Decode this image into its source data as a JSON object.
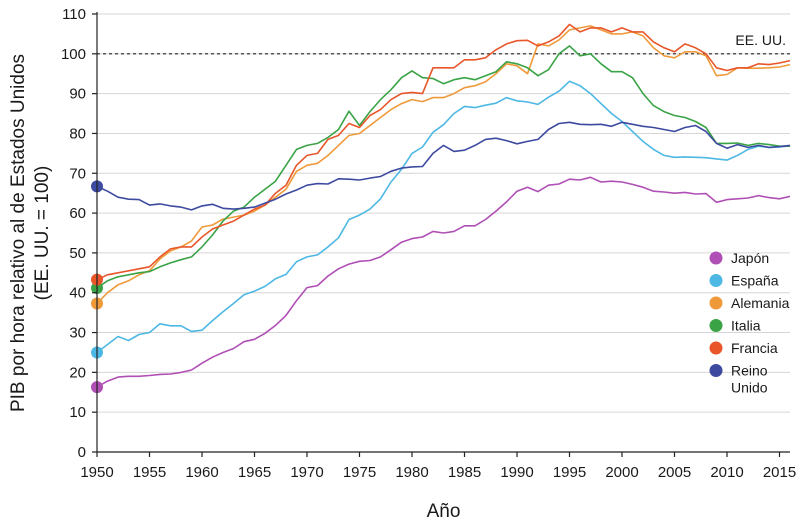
{
  "chart_data": {
    "type": "line",
    "xlabel": "Año",
    "ylabel": [
      "PIB por hora relativo al de Estados Unidos",
      "(EE. UU. = 100)"
    ],
    "xlim": [
      1950,
      2016
    ],
    "ylim": [
      0,
      110
    ],
    "xticks": [
      1950,
      1955,
      1960,
      1965,
      1970,
      1975,
      1980,
      1985,
      1990,
      1995,
      2000,
      2005,
      2010,
      2015
    ],
    "yticks": [
      0,
      10,
      20,
      30,
      40,
      50,
      60,
      70,
      80,
      90,
      100,
      110
    ],
    "grid": "horizontal",
    "legend_position": "right",
    "reference_line": {
      "y": 100,
      "label": "EE. UU.",
      "style": "dashed"
    },
    "series": [
      {
        "name": "Japón",
        "color": "#b04fb5",
        "x": [
          1950,
          1951,
          1952,
          1953,
          1954,
          1955,
          1956,
          1957,
          1958,
          1959,
          1960,
          1961,
          1962,
          1963,
          1964,
          1965,
          1966,
          1967,
          1968,
          1969,
          1970,
          1971,
          1972,
          1973,
          1974,
          1975,
          1976,
          1977,
          1978,
          1979,
          1980,
          1981,
          1982,
          1983,
          1984,
          1985,
          1986,
          1987,
          1988,
          1989,
          1990,
          1991,
          1992,
          1993,
          1994,
          1995,
          1996,
          1997,
          1998,
          1999,
          2000,
          2001,
          2002,
          2003,
          2004,
          2005,
          2006,
          2007,
          2008,
          2009,
          2010,
          2011,
          2012,
          2013,
          2014,
          2015,
          2016
        ],
        "y": [
          16.3,
          17.8,
          18.8,
          19,
          19,
          19.2,
          19.5,
          19.6,
          20,
          20.6,
          22.3,
          23.8,
          25,
          26,
          27.7,
          28.3,
          29.8,
          31.8,
          34.3,
          38,
          41.3,
          41.8,
          44.2,
          46,
          47.2,
          47.9,
          48.1,
          49,
          50.8,
          52.7,
          53.6,
          54,
          55.4,
          55,
          55.4,
          56.8,
          56.8,
          58.4,
          60.5,
          62.8,
          65.5,
          66.5,
          65.4,
          67,
          67.3,
          68.5,
          68.3,
          69,
          67.8,
          68,
          67.8,
          67.2,
          66.5,
          65.5,
          65.3,
          65,
          65.2,
          64.8,
          64.9,
          62.7,
          63.4,
          63.6,
          63.8,
          64.4,
          63.9,
          63.6,
          64.2
        ]
      },
      {
        "name": "España",
        "color": "#4db8e4",
        "x": [
          1950,
          1951,
          1952,
          1953,
          1954,
          1955,
          1956,
          1957,
          1958,
          1959,
          1960,
          1961,
          1962,
          1963,
          1964,
          1965,
          1966,
          1967,
          1968,
          1969,
          1970,
          1971,
          1972,
          1973,
          1974,
          1975,
          1976,
          1977,
          1978,
          1979,
          1980,
          1981,
          1982,
          1983,
          1984,
          1985,
          1986,
          1987,
          1988,
          1989,
          1990,
          1991,
          1992,
          1993,
          1994,
          1995,
          1996,
          1997,
          1998,
          1999,
          2000,
          2001,
          2002,
          2003,
          2004,
          2005,
          2006,
          2007,
          2008,
          2009,
          2010,
          2011,
          2012,
          2013,
          2014,
          2015,
          2016
        ],
        "y": [
          25,
          27,
          29,
          28,
          29.5,
          30,
          32.2,
          31.7,
          31.7,
          30.3,
          30.6,
          33,
          35.2,
          37.3,
          39.5,
          40.4,
          41.6,
          43.5,
          44.6,
          47.8,
          49,
          49.5,
          51.5,
          53.8,
          58.4,
          59.5,
          61,
          63.6,
          67.8,
          71,
          75,
          76.6,
          80.3,
          82.2,
          85,
          86.8,
          86.5,
          87.1,
          87.6,
          89,
          88.2,
          87.9,
          87.3,
          89.1,
          90.6,
          93.1,
          92,
          90,
          87.5,
          85,
          83,
          80.5,
          78,
          76,
          74.5,
          74,
          74.1,
          74,
          73.9,
          73.6,
          73.3,
          74.5,
          76,
          76.8,
          76.5,
          76.6,
          76.9
        ]
      },
      {
        "name": "Alemania",
        "color": "#ef9a3a",
        "x": [
          1950,
          1951,
          1952,
          1953,
          1954,
          1955,
          1956,
          1957,
          1958,
          1959,
          1960,
          1961,
          1962,
          1963,
          1964,
          1965,
          1966,
          1967,
          1968,
          1969,
          1970,
          1971,
          1972,
          1973,
          1974,
          1975,
          1976,
          1977,
          1978,
          1979,
          1980,
          1981,
          1982,
          1983,
          1984,
          1985,
          1986,
          1987,
          1988,
          1989,
          1990,
          1991,
          1992,
          1993,
          1994,
          1995,
          1996,
          1997,
          1998,
          1999,
          2000,
          2001,
          2002,
          2003,
          2004,
          2005,
          2006,
          2007,
          2008,
          2009,
          2010,
          2011,
          2012,
          2013,
          2014,
          2015,
          2016
        ],
        "y": [
          37.3,
          40,
          42,
          43,
          44.5,
          45.5,
          48.5,
          50.5,
          51.5,
          53,
          56.5,
          57,
          58.5,
          59,
          59.5,
          60.5,
          62,
          64,
          66,
          70.5,
          72,
          72.5,
          74.5,
          77,
          79.5,
          80,
          82,
          84,
          86,
          87.5,
          88.5,
          88,
          89,
          89,
          90,
          91.5,
          92,
          93,
          95,
          97.5,
          97,
          95,
          102.5,
          102,
          103.5,
          106,
          106.5,
          107,
          106,
          105,
          105,
          105.5,
          104.5,
          101.5,
          99.5,
          99,
          100.5,
          100.5,
          99.5,
          94.5,
          94.8,
          96.5,
          96.4,
          96.4,
          96.5,
          96.7,
          97.3
        ]
      },
      {
        "name": "Italia",
        "color": "#3aa346",
        "x": [
          1950,
          1951,
          1952,
          1953,
          1954,
          1955,
          1956,
          1957,
          1958,
          1959,
          1960,
          1961,
          1962,
          1963,
          1964,
          1965,
          1966,
          1967,
          1968,
          1969,
          1970,
          1971,
          1972,
          1973,
          1974,
          1975,
          1976,
          1977,
          1978,
          1979,
          1980,
          1981,
          1982,
          1983,
          1984,
          1985,
          1986,
          1987,
          1988,
          1989,
          1990,
          1991,
          1992,
          1993,
          1994,
          1995,
          1996,
          1997,
          1998,
          1999,
          2000,
          2001,
          2002,
          2003,
          2004,
          2005,
          2006,
          2007,
          2008,
          2009,
          2010,
          2011,
          2012,
          2013,
          2014,
          2015,
          2016
        ],
        "y": [
          41.2,
          43,
          44,
          44.5,
          45,
          45.3,
          46.5,
          47.5,
          48.3,
          49,
          51.5,
          54.5,
          58,
          60.5,
          61.5,
          64,
          66,
          68,
          72,
          76,
          77,
          77.5,
          79,
          81,
          85.6,
          82,
          85.5,
          88.5,
          91,
          94,
          95.7,
          94,
          93.8,
          92.5,
          93.5,
          94,
          93.5,
          94.5,
          95.5,
          98,
          97.5,
          96.5,
          94.5,
          96,
          100,
          102,
          99.5,
          100,
          97.5,
          95.5,
          95.5,
          94,
          90,
          87,
          85.5,
          84.5,
          84,
          83,
          81.5,
          77.5,
          77.5,
          77.6,
          77,
          77.5,
          77.2,
          76.8,
          76.8
        ]
      },
      {
        "name": "Francia",
        "color": "#e8562a",
        "x": [
          1950,
          1951,
          1952,
          1953,
          1954,
          1955,
          1956,
          1957,
          1958,
          1959,
          1960,
          1961,
          1962,
          1963,
          1964,
          1965,
          1966,
          1967,
          1968,
          1969,
          1970,
          1971,
          1972,
          1973,
          1974,
          1975,
          1976,
          1977,
          1978,
          1979,
          1980,
          1981,
          1982,
          1983,
          1984,
          1985,
          1986,
          1987,
          1988,
          1989,
          1990,
          1991,
          1992,
          1993,
          1994,
          1995,
          1996,
          1997,
          1998,
          1999,
          2000,
          2001,
          2002,
          2003,
          2004,
          2005,
          2006,
          2007,
          2008,
          2009,
          2010,
          2011,
          2012,
          2013,
          2014,
          2015,
          2016
        ],
        "y": [
          43.3,
          44.5,
          45,
          45.5,
          46,
          46.5,
          49,
          51,
          51.5,
          51.5,
          54,
          56,
          57,
          58,
          59.5,
          61,
          62,
          65,
          67,
          72,
          74.5,
          75,
          78.5,
          79.5,
          82.5,
          81.5,
          84.5,
          86,
          88.5,
          90,
          90.3,
          90,
          96.5,
          96.5,
          96.5,
          98.5,
          98.5,
          99,
          101,
          102.5,
          103.3,
          103.4,
          102,
          103,
          104.5,
          107.4,
          105.5,
          106.5,
          106.5,
          105.5,
          106.5,
          105.5,
          105.5,
          103,
          101.5,
          100.5,
          102.5,
          101.5,
          100,
          96.5,
          95.8,
          96.5,
          96.5,
          97.5,
          97.3,
          97.7,
          98.3
        ]
      },
      {
        "name": "Reino Unido",
        "color": "#3d4aa0",
        "x": [
          1950,
          1951,
          1952,
          1953,
          1954,
          1955,
          1956,
          1957,
          1958,
          1959,
          1960,
          1961,
          1962,
          1963,
          1964,
          1965,
          1966,
          1967,
          1968,
          1969,
          1970,
          1971,
          1972,
          1973,
          1974,
          1975,
          1976,
          1977,
          1978,
          1979,
          1980,
          1981,
          1982,
          1983,
          1984,
          1985,
          1986,
          1987,
          1988,
          1989,
          1990,
          1991,
          1992,
          1993,
          1994,
          1995,
          1996,
          1997,
          1998,
          1999,
          2000,
          2001,
          2002,
          2003,
          2004,
          2005,
          2006,
          2007,
          2008,
          2009,
          2010,
          2011,
          2012,
          2013,
          2014,
          2015,
          2016
        ],
        "y": [
          66.7,
          65.5,
          64,
          63.5,
          63.4,
          62,
          62.3,
          61.8,
          61.5,
          60.8,
          61.8,
          62.2,
          61.2,
          61,
          61.2,
          61.5,
          62.5,
          63.5,
          64.8,
          65.8,
          67,
          67.4,
          67.3,
          68.6,
          68.5,
          68.3,
          68.8,
          69.2,
          70.5,
          71.3,
          71.6,
          71.7,
          75,
          77,
          75.5,
          75.8,
          77,
          78.5,
          78.8,
          78.2,
          77.4,
          78,
          78.5,
          81,
          82.5,
          82.8,
          82.3,
          82.2,
          82.3,
          81.8,
          82.8,
          82.3,
          81.8,
          81.5,
          81,
          80.5,
          81.5,
          82,
          80.5,
          77.5,
          76.3,
          77.2,
          76.5,
          77,
          76.5,
          76.7,
          77
        ]
      }
    ]
  }
}
